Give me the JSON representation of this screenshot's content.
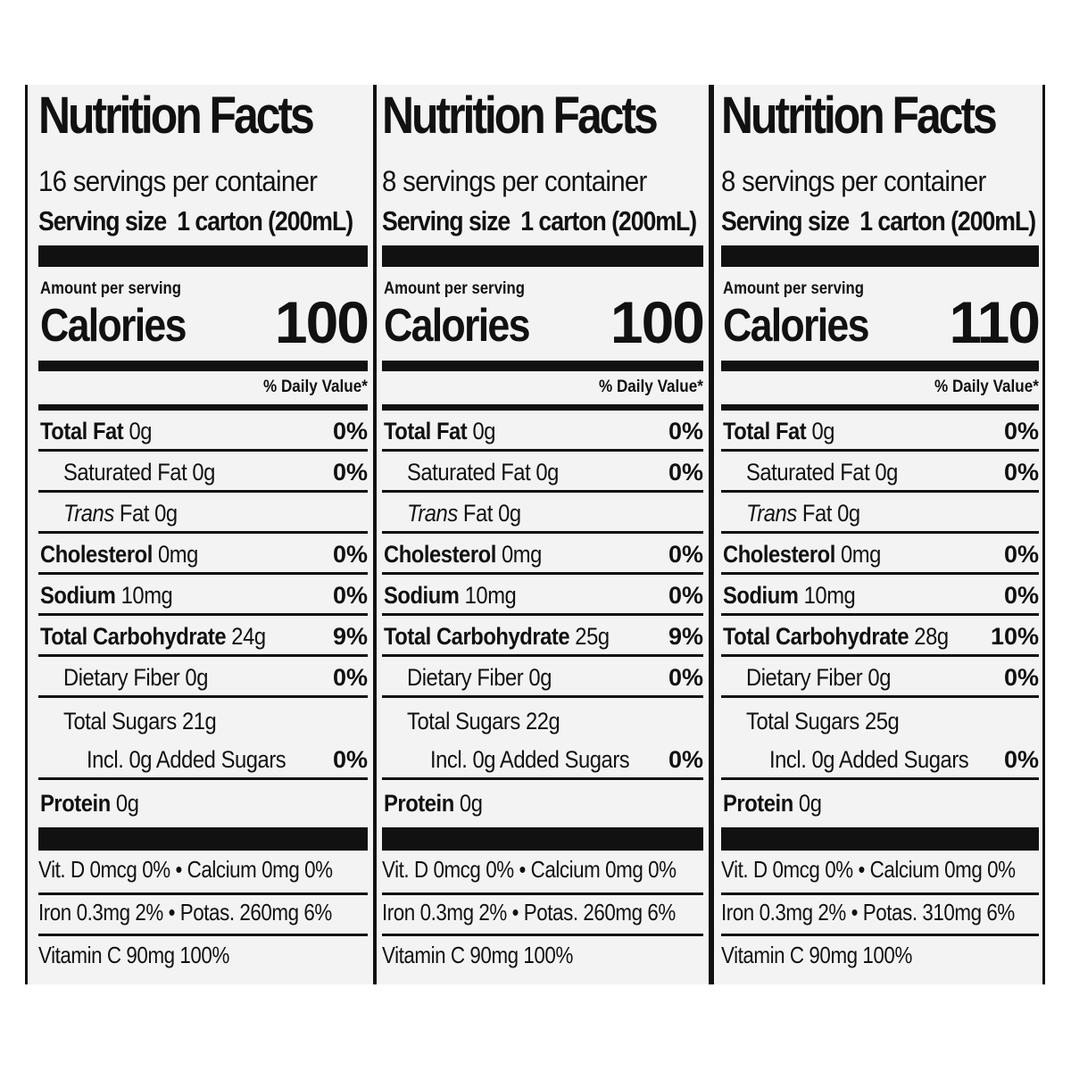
{
  "panels": [
    {
      "title": "Nutrition Facts",
      "servings": "16 servings per container",
      "serving_size_label": "Serving size",
      "serving_size_value": "1 carton (200mL)",
      "amount_per_serving": "Amount per serving",
      "calories_label": "Calories",
      "calories_value": "100",
      "daily_value_header": "% Daily Value*",
      "rows": [
        {
          "bold": "Total Fat",
          "value": " 0g",
          "pct": "0%"
        },
        {
          "bold": "",
          "value": "Saturated Fat 0g",
          "pct": "0%"
        },
        {
          "italic": "Trans",
          "value": " Fat 0g",
          "pct": ""
        },
        {
          "bold": "Cholesterol",
          "value": " 0mg",
          "pct": "0%"
        },
        {
          "bold": "Sodium",
          "value": " 10mg",
          "pct": "0%"
        },
        {
          "bold": "Total Carbohydrate",
          "value": " 24g",
          "pct": "9%"
        },
        {
          "bold": "",
          "value": "Dietary Fiber 0g",
          "pct": "0%"
        },
        {
          "bold": "",
          "value": "Total Sugars 21g",
          "pct": ""
        },
        {
          "bold": "",
          "value": "Incl. 0g Added Sugars",
          "pct": "0%"
        },
        {
          "bold": "Protein",
          "value": " 0g",
          "pct": ""
        }
      ],
      "vitamins_line1": "Vit. D 0mcg 0% •  Calcium 0mg 0%",
      "vitamins_line2": "Iron 0.3mg 2%  •  Potas. 260mg 6%",
      "vitamins_line3": "Vitamin C 90mg 100%"
    },
    {
      "title": "Nutrition Facts",
      "servings": "8 servings per container",
      "serving_size_label": "Serving size",
      "serving_size_value": "1 carton (200mL)",
      "amount_per_serving": "Amount per serving",
      "calories_label": "Calories",
      "calories_value": "100",
      "daily_value_header": "% Daily Value*",
      "rows": [
        {
          "bold": "Total Fat",
          "value": " 0g",
          "pct": "0%"
        },
        {
          "bold": "",
          "value": "Saturated Fat 0g",
          "pct": "0%"
        },
        {
          "italic": "Trans",
          "value": " Fat 0g",
          "pct": ""
        },
        {
          "bold": "Cholesterol",
          "value": " 0mg",
          "pct": "0%"
        },
        {
          "bold": "Sodium",
          "value": " 10mg",
          "pct": "0%"
        },
        {
          "bold": "Total Carbohydrate",
          "value": " 25g",
          "pct": "9%"
        },
        {
          "bold": "",
          "value": "Dietary Fiber 0g",
          "pct": "0%"
        },
        {
          "bold": "",
          "value": "Total Sugars 22g",
          "pct": ""
        },
        {
          "bold": "",
          "value": "Incl. 0g Added Sugars",
          "pct": "0%"
        },
        {
          "bold": "Protein",
          "value": " 0g",
          "pct": ""
        }
      ],
      "vitamins_line1": "Vit. D 0mcg 0%  •  Calcium 0mg 0%",
      "vitamins_line2": "Iron 0.3mg 2%  •  Potas. 260mg 6%",
      "vitamins_line3": "Vitamin C 90mg 100%"
    },
    {
      "title": "Nutrition Facts",
      "servings": "8 servings per container",
      "serving_size_label": "Serving size",
      "serving_size_value": "1 carton (200mL)",
      "amount_per_serving": "Amount per serving",
      "calories_label": "Calories",
      "calories_value": "110",
      "daily_value_header": "% Daily Value*",
      "rows": [
        {
          "bold": "Total Fat",
          "value": " 0g",
          "pct": "0%"
        },
        {
          "bold": "",
          "value": "Saturated Fat 0g",
          "pct": "0%"
        },
        {
          "italic": "Trans",
          "value": " Fat 0g",
          "pct": ""
        },
        {
          "bold": "Cholesterol",
          "value": " 0mg",
          "pct": "0%"
        },
        {
          "bold": "Sodium",
          "value": " 10mg",
          "pct": "0%"
        },
        {
          "bold": "Total Carbohydrate",
          "value": " 28g",
          "pct": "10%"
        },
        {
          "bold": "",
          "value": "Dietary Fiber 0g",
          "pct": "0%"
        },
        {
          "bold": "",
          "value": "Total Sugars 25g",
          "pct": ""
        },
        {
          "bold": "",
          "value": "Incl. 0g Added Sugars",
          "pct": "0%"
        },
        {
          "bold": "Protein",
          "value": " 0g",
          "pct": ""
        }
      ],
      "vitamins_line1": "Vit. D 0mcg 0%  •  Calcium 0mg 0%",
      "vitamins_line2": "Iron 0.3mg 2%  •  Potas. 310mg 6%",
      "vitamins_line3": "Vitamin C 90mg 100%"
    }
  ]
}
